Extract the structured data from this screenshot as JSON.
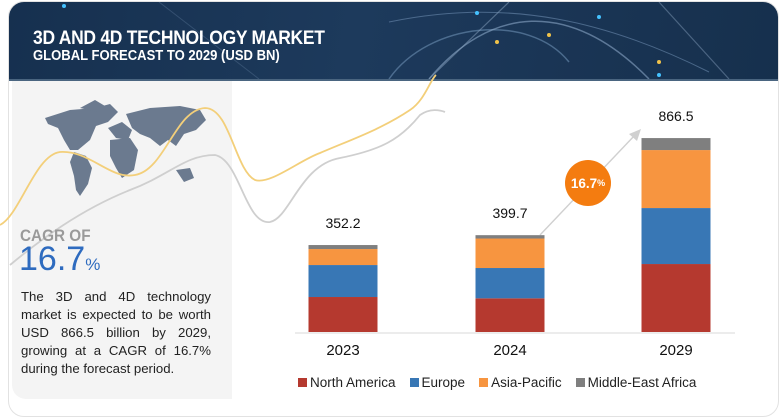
{
  "header": {
    "title": "3D AND 4D TECHNOLOGY MARKET",
    "subtitle": "GLOBAL FORECAST TO 2029 (USD BN)"
  },
  "summary": {
    "cagr_label": "CAGR OF",
    "cagr_value": "16.7",
    "cagr_unit": "%",
    "description": "The 3D and 4D technology market is expected to be worth USD 866.5 billion by 2029, growing at a CAGR of 16.7% during the forecast period."
  },
  "growth_bubble": {
    "value": "16.7",
    "unit": "%"
  },
  "colors": {
    "north_america": "#b5392f",
    "europe": "#3877b5",
    "asia_pacific": "#f79540",
    "middle_east_africa": "#7f7f7f",
    "accent_orange": "#f47c10",
    "cagr_blue": "#2e6bbf",
    "banner": "#1b375a"
  },
  "chart_data": {
    "type": "bar",
    "stacked": true,
    "title": "3D AND 4D TECHNOLOGY MARKET",
    "subtitle": "GLOBAL FORECAST TO 2029 (USD BN)",
    "xlabel": "",
    "ylabel": "USD BN",
    "categories": [
      "2023",
      "2024",
      "2029"
    ],
    "totals": [
      352.2,
      399.7,
      866.5
    ],
    "total_labels": [
      "352.2",
      "399.7",
      "866.5"
    ],
    "series": [
      {
        "name": "North America",
        "key": "north_america",
        "values": [
          141.7,
          139.0,
          303.7
        ]
      },
      {
        "name": "Europe",
        "key": "europe",
        "values": [
          129.5,
          125.1,
          250.1
        ]
      },
      {
        "name": "Asia-Pacific",
        "key": "asia_pacific",
        "values": [
          64.8,
          121.7,
          259.1
        ]
      },
      {
        "name": "Middle-East Africa",
        "key": "middle_east_africa",
        "values": [
          16.2,
          13.9,
          53.6
        ]
      }
    ],
    "legend": [
      "North America",
      "Europe",
      "Asia-Pacific",
      "Middle-East Africa"
    ],
    "legend_position": "bottom",
    "grid": false,
    "annotation": "CAGR 16.7%"
  }
}
